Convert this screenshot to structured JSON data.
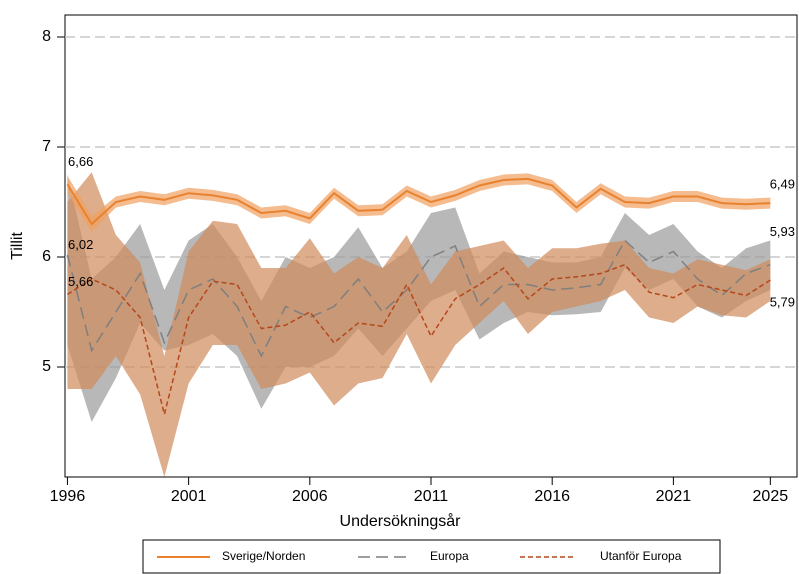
{
  "chart_data": {
    "type": "line",
    "xlabel": "Undersökningsår",
    "ylabel": "Tillit",
    "x": [
      1996,
      1997,
      1998,
      1999,
      2000,
      2001,
      2002,
      2003,
      2004,
      2005,
      2006,
      2007,
      2008,
      2009,
      2010,
      2011,
      2012,
      2013,
      2014,
      2015,
      2016,
      2017,
      2018,
      2019,
      2020,
      2021,
      2022,
      2023,
      2024,
      2025
    ],
    "xlim": [
      1995.9,
      2026.1
    ],
    "xticks": [
      1996,
      2001,
      2006,
      2011,
      2016,
      2021,
      2025
    ],
    "ylim": [
      4.0,
      8.2
    ],
    "yticks": [
      5,
      6,
      7,
      8
    ],
    "grid": true,
    "legend": "bottom",
    "series": [
      {
        "name": "Sverige/Norden",
        "color": "#e8822e",
        "band_color": "#f0a060",
        "dash": "solid",
        "start_label": "6,66",
        "end_label": "6,49",
        "values": [
          6.66,
          6.3,
          6.5,
          6.55,
          6.52,
          6.58,
          6.56,
          6.52,
          6.4,
          6.42,
          6.35,
          6.58,
          6.42,
          6.43,
          6.6,
          6.5,
          6.56,
          6.65,
          6.7,
          6.71,
          6.65,
          6.45,
          6.62,
          6.5,
          6.49,
          6.55,
          6.55,
          6.49,
          6.48,
          6.49
        ],
        "lower": [
          6.58,
          6.23,
          6.45,
          6.5,
          6.47,
          6.53,
          6.51,
          6.47,
          6.35,
          6.37,
          6.3,
          6.53,
          6.37,
          6.38,
          6.55,
          6.45,
          6.51,
          6.6,
          6.65,
          6.66,
          6.6,
          6.4,
          6.57,
          6.45,
          6.44,
          6.5,
          6.5,
          6.44,
          6.43,
          6.44
        ],
        "upper": [
          6.74,
          6.37,
          6.55,
          6.6,
          6.57,
          6.63,
          6.61,
          6.57,
          6.45,
          6.47,
          6.4,
          6.63,
          6.47,
          6.48,
          6.65,
          6.55,
          6.61,
          6.7,
          6.75,
          6.76,
          6.7,
          6.5,
          6.67,
          6.55,
          6.54,
          6.6,
          6.6,
          6.54,
          6.53,
          6.54
        ]
      },
      {
        "name": "Europa",
        "color": "#7f7f7f",
        "band_color": "#9a9a9a",
        "dash": "dashed",
        "start_label": "6,02",
        "end_label": "5,93",
        "values": [
          6.02,
          5.15,
          5.5,
          5.85,
          5.22,
          5.7,
          5.8,
          5.55,
          5.1,
          5.55,
          5.45,
          5.55,
          5.8,
          5.5,
          5.7,
          6.0,
          6.1,
          5.55,
          5.75,
          5.75,
          5.7,
          5.72,
          5.75,
          6.15,
          5.95,
          6.05,
          5.8,
          5.65,
          5.85,
          5.93
        ],
        "lower": [
          5.2,
          4.5,
          4.9,
          5.4,
          5.15,
          5.2,
          5.3,
          5.1,
          4.62,
          5.0,
          5.0,
          5.1,
          5.35,
          5.1,
          5.35,
          5.6,
          5.7,
          5.25,
          5.4,
          5.5,
          5.47,
          5.48,
          5.5,
          5.9,
          5.7,
          5.8,
          5.55,
          5.45,
          5.6,
          5.7
        ],
        "upper": [
          6.75,
          5.8,
          6.0,
          6.3,
          5.7,
          6.15,
          6.3,
          6.0,
          5.6,
          6.0,
          5.9,
          6.0,
          6.27,
          5.9,
          6.05,
          6.4,
          6.45,
          5.85,
          6.05,
          6.0,
          5.95,
          5.95,
          6.0,
          6.4,
          6.2,
          6.3,
          6.05,
          5.9,
          6.08,
          6.15
        ]
      },
      {
        "name": "Utanför Europa",
        "color": "#b5471a",
        "band_color": "#d08a5a",
        "dash": "dotted",
        "start_label": "5,66",
        "end_label": "5,79",
        "values": [
          5.66,
          5.8,
          5.7,
          5.45,
          4.57,
          5.45,
          5.78,
          5.75,
          5.35,
          5.38,
          5.5,
          5.22,
          5.4,
          5.37,
          5.75,
          5.28,
          5.62,
          5.75,
          5.9,
          5.62,
          5.8,
          5.82,
          5.85,
          5.93,
          5.68,
          5.63,
          5.75,
          5.7,
          5.65,
          5.79
        ],
        "lower": [
          4.8,
          4.8,
          5.1,
          4.75,
          4.0,
          4.85,
          5.2,
          5.2,
          4.8,
          4.85,
          4.95,
          4.65,
          4.85,
          4.9,
          5.3,
          4.85,
          5.2,
          5.4,
          5.6,
          5.3,
          5.5,
          5.55,
          5.6,
          5.7,
          5.45,
          5.4,
          5.55,
          5.47,
          5.45,
          5.6
        ],
        "upper": [
          6.5,
          6.77,
          6.2,
          5.95,
          5.1,
          6.05,
          6.33,
          6.3,
          5.9,
          5.9,
          6.17,
          5.85,
          6.0,
          5.9,
          6.2,
          5.75,
          6.05,
          6.1,
          6.15,
          5.9,
          6.08,
          6.08,
          6.12,
          6.15,
          5.9,
          5.85,
          5.98,
          5.93,
          5.88,
          5.98
        ]
      }
    ]
  }
}
